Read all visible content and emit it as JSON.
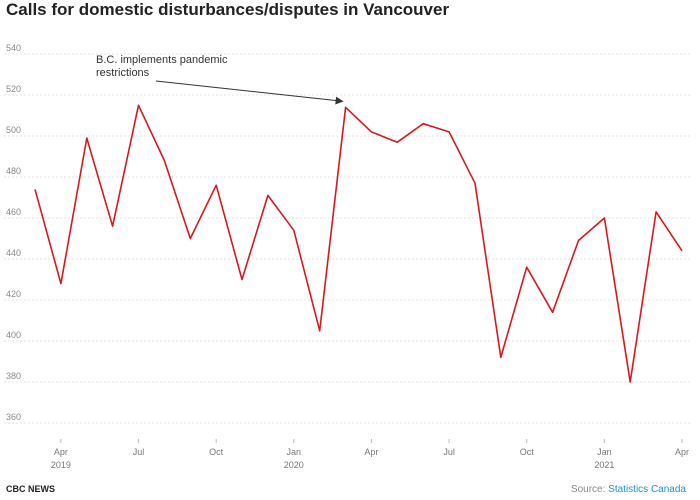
{
  "chart_data": {
    "type": "line",
    "title": "Calls for domestic disturbances/disputes in Vancouver",
    "xlabel": "",
    "ylabel": "",
    "ylim": [
      360,
      540
    ],
    "yticks": [
      360,
      380,
      400,
      420,
      440,
      460,
      480,
      500,
      520,
      540
    ],
    "grid": true,
    "x": [
      "2019-03",
      "2019-04",
      "2019-05",
      "2019-06",
      "2019-07",
      "2019-08",
      "2019-09",
      "2019-10",
      "2019-11",
      "2019-12",
      "2020-01",
      "2020-02",
      "2020-03",
      "2020-04",
      "2020-05",
      "2020-06",
      "2020-07",
      "2020-08",
      "2020-09",
      "2020-10",
      "2020-11",
      "2020-12",
      "2021-01",
      "2021-02",
      "2021-03",
      "2021-04"
    ],
    "series": [
      {
        "name": "Calls",
        "color": "#d7191c",
        "values": [
          474,
          428,
          499,
          456,
          515,
          488,
          450,
          476,
          430,
          471,
          454,
          405,
          514,
          502,
          497,
          506,
          502,
          477,
          392,
          436,
          414,
          449,
          460,
          380,
          463,
          444
        ]
      }
    ],
    "xticks": [
      {
        "index": 1,
        "label": "Apr",
        "sublabel": "2019"
      },
      {
        "index": 4,
        "label": "Jul",
        "sublabel": ""
      },
      {
        "index": 7,
        "label": "Oct",
        "sublabel": ""
      },
      {
        "index": 10,
        "label": "Jan",
        "sublabel": "2020"
      },
      {
        "index": 13,
        "label": "Apr",
        "sublabel": ""
      },
      {
        "index": 16,
        "label": "Jul",
        "sublabel": ""
      },
      {
        "index": 19,
        "label": "Oct",
        "sublabel": ""
      },
      {
        "index": 22,
        "label": "Jan",
        "sublabel": "2021"
      },
      {
        "index": 25,
        "label": "Apr",
        "sublabel": ""
      }
    ],
    "annotations": [
      {
        "text_lines": [
          "B.C. implements pandemic",
          "restrictions"
        ],
        "target_index": 12
      }
    ]
  },
  "footer": {
    "brand": "CBC NEWS",
    "source_label": "Source:",
    "source_name": "Statistics Canada",
    "link_color": "#1f8fd8"
  }
}
